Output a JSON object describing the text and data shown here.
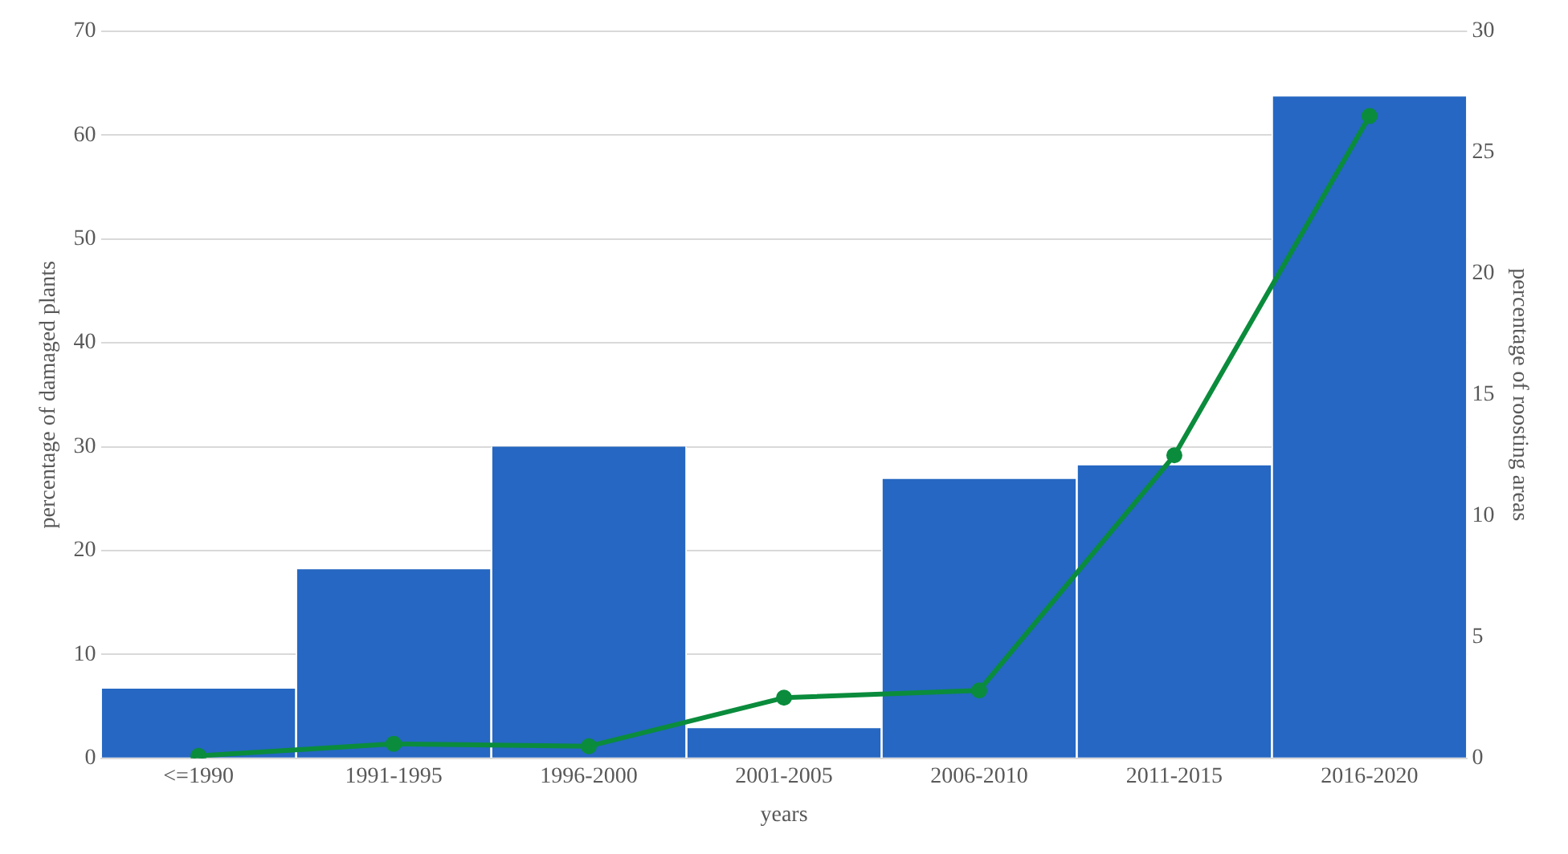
{
  "chart_data": {
    "type": "bar",
    "xlabel": "years",
    "ylabel": "percentage of damaged plants",
    "y2label": "percentage of roosting areas",
    "categories": [
      "<=1990",
      "1991-1995",
      "1996-2000",
      "2001-2005",
      "2006-2010",
      "2011-2015",
      "2016-2020"
    ],
    "series": [
      {
        "color": "#2567c2",
        "values": [
          6.7,
          18.2,
          30.0,
          2.9,
          26.9,
          28.2,
          63.7
        ]
      },
      {
        "type": "line",
        "axis": "y2",
        "color": "#0a8c3c",
        "marker": "circle",
        "line_style": "solid",
        "values": [
          0.1,
          0.6,
          0.5,
          2.5,
          2.8,
          12.5,
          26.5
        ]
      }
    ],
    "ylim": [
      0,
      70
    ],
    "yticks": [
      0,
      10,
      20,
      30,
      40,
      50,
      60,
      70
    ],
    "y2lim": [
      0,
      30
    ],
    "y2ticks": [
      0,
      5,
      10,
      15,
      20,
      25,
      30
    ],
    "grid": "y",
    "legend": false
  }
}
